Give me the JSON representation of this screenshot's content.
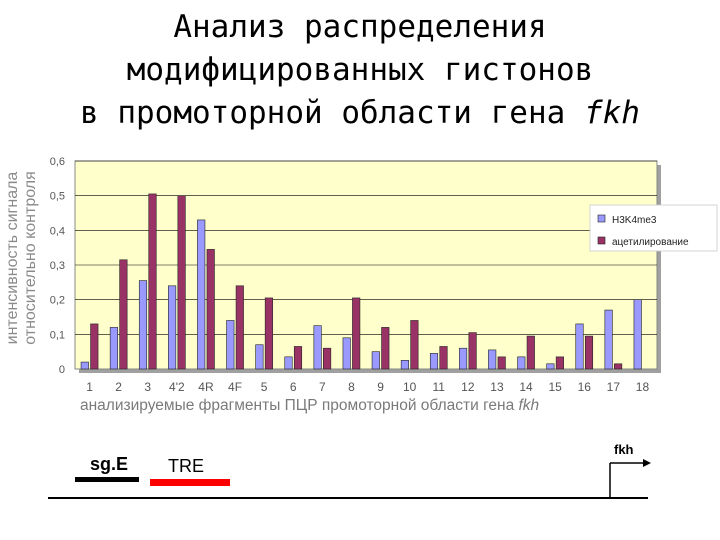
{
  "title": {
    "line1": "Анализ распределения",
    "line2": "модифицированных гистонов",
    "line3_prefix": "в промоторной области гена ",
    "line3_gene": "fkh"
  },
  "chart_data": {
    "type": "bar",
    "ylabel_line1": "интенсивность сигнала",
    "ylabel_line2": "относительно контроля",
    "xlabel_prefix": "анализируемые фрагменты ПЦР промоторной области гена ",
    "xlabel_gene": "fkh",
    "ylim": [
      0,
      0.6
    ],
    "yticks": [
      "0",
      "0,1",
      "0,2",
      "0,3",
      "0,4",
      "0,5",
      "0,6"
    ],
    "grid": true,
    "legend_position": "top-right",
    "categories": [
      "1",
      "2",
      "3",
      "4'2",
      "4R",
      "4F",
      "5",
      "6",
      "7",
      "8",
      "9",
      "10",
      "11",
      "12",
      "13",
      "14",
      "15",
      "16",
      "17",
      "18"
    ],
    "series": [
      {
        "name": "H3K4me3",
        "color": "#9999ff",
        "values": [
          0.02,
          0.12,
          0.255,
          0.24,
          0.43,
          0.14,
          0.07,
          0.035,
          0.125,
          0.09,
          0.05,
          0.025,
          0.045,
          0.06,
          0.055,
          0.035,
          0.015,
          0.13,
          0.17,
          0.2
        ]
      },
      {
        "name": "ацетилирование",
        "color": "#993366",
        "values": [
          0.13,
          0.315,
          0.505,
          0.5,
          0.345,
          0.24,
          0.205,
          0.065,
          0.06,
          0.205,
          0.12,
          0.14,
          0.065,
          0.105,
          0.035,
          0.095,
          0.035,
          0.095,
          0.015,
          0.0
        ]
      }
    ]
  },
  "diagram": {
    "label_sgE": "sg.E",
    "label_TRE": "TRE",
    "label_fkh": "fkh",
    "color_sgE": "#000000",
    "color_TRE": "#ff0000"
  }
}
